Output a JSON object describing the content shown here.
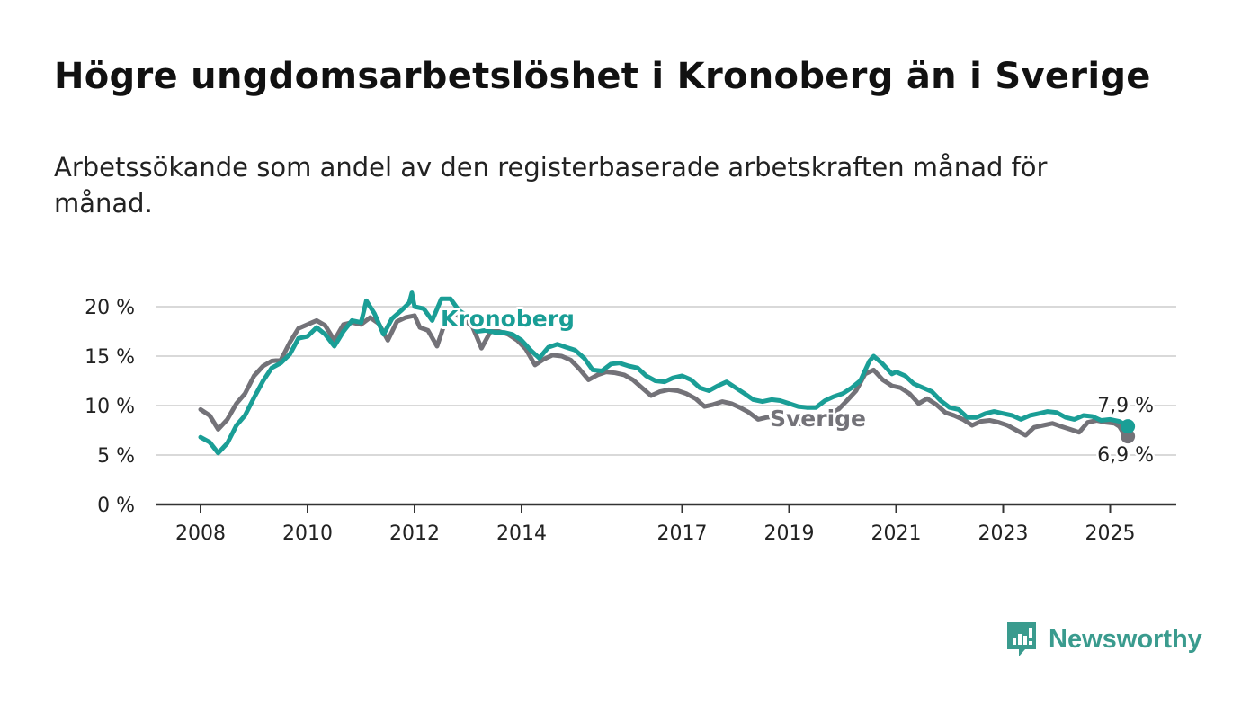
{
  "title": "Högre ungdomsarbetslöshet i Kronoberg än i Sverige",
  "subtitle": "Arbetssökande som andel av den registerbaserade arbetskraften månad för månad.",
  "brand": {
    "name": "Newsworthy",
    "icon": "newsworthy-logo-icon"
  },
  "colors": {
    "kronoberg": "#1a9e96",
    "sverige": "#737278",
    "grid": "#d9d9d9",
    "axis": "#333333",
    "brand": "#3a9b8e"
  },
  "chart_data": {
    "type": "line",
    "title": "Högre ungdomsarbetslöshet i Kronoberg än i Sverige",
    "subtitle": "Arbetssökande som andel av den registerbaserade arbetskraften månad för månad.",
    "xlabel": "",
    "ylabel": "",
    "x_ticks": [
      2008,
      2010,
      2012,
      2014,
      2017,
      2019,
      2021,
      2023,
      2025
    ],
    "x_tick_labels": [
      "2008",
      "2010",
      "2012",
      "2014",
      "2017",
      "2019",
      "2021",
      "2023",
      "2025"
    ],
    "y_ticks": [
      0,
      5,
      10,
      15,
      20
    ],
    "y_tick_labels": [
      "0 %",
      "5 %",
      "10 %",
      "15 %",
      "20 %"
    ],
    "ylim": [
      0,
      20
    ],
    "xlim": [
      2007.2,
      2026.2
    ],
    "grid": true,
    "legend": "inline labels",
    "series": [
      {
        "name": "Kronoberg",
        "color": "#1a9e96",
        "end_label": "7,9 %",
        "points": [
          [
            2008.0,
            6.8
          ],
          [
            2008.17,
            6.3
          ],
          [
            2008.33,
            5.2
          ],
          [
            2008.5,
            6.2
          ],
          [
            2008.67,
            8.0
          ],
          [
            2008.83,
            9.0
          ],
          [
            2009.0,
            10.8
          ],
          [
            2009.17,
            12.5
          ],
          [
            2009.33,
            13.8
          ],
          [
            2009.5,
            14.3
          ],
          [
            2009.67,
            15.2
          ],
          [
            2009.83,
            16.8
          ],
          [
            2010.0,
            17.0
          ],
          [
            2010.17,
            17.9
          ],
          [
            2010.33,
            17.2
          ],
          [
            2010.5,
            16.0
          ],
          [
            2010.67,
            17.5
          ],
          [
            2010.83,
            18.6
          ],
          [
            2011.0,
            18.4
          ],
          [
            2011.1,
            20.6
          ],
          [
            2011.25,
            19.3
          ],
          [
            2011.42,
            17.2
          ],
          [
            2011.58,
            18.8
          ],
          [
            2011.75,
            19.6
          ],
          [
            2011.9,
            20.4
          ],
          [
            2011.95,
            21.4
          ],
          [
            2012.0,
            20.0
          ],
          [
            2012.17,
            19.8
          ],
          [
            2012.33,
            18.6
          ],
          [
            2012.5,
            20.8
          ],
          [
            2012.67,
            20.8
          ],
          [
            2012.83,
            19.6
          ],
          [
            2013.0,
            19.0
          ],
          [
            2013.17,
            17.5
          ],
          [
            2013.33,
            17.6
          ],
          [
            2013.5,
            17.4
          ],
          [
            2013.67,
            17.4
          ],
          [
            2013.83,
            17.2
          ],
          [
            2014.0,
            16.6
          ],
          [
            2014.17,
            15.6
          ],
          [
            2014.33,
            14.8
          ],
          [
            2014.5,
            15.9
          ],
          [
            2014.67,
            16.2
          ],
          [
            2014.83,
            15.9
          ],
          [
            2015.0,
            15.6
          ],
          [
            2015.17,
            14.8
          ],
          [
            2015.33,
            13.6
          ],
          [
            2015.5,
            13.5
          ],
          [
            2015.67,
            14.2
          ],
          [
            2015.83,
            14.3
          ],
          [
            2016.0,
            14.0
          ],
          [
            2016.17,
            13.8
          ],
          [
            2016.33,
            13.0
          ],
          [
            2016.5,
            12.5
          ],
          [
            2016.67,
            12.4
          ],
          [
            2016.83,
            12.8
          ],
          [
            2017.0,
            13.0
          ],
          [
            2017.17,
            12.6
          ],
          [
            2017.33,
            11.8
          ],
          [
            2017.5,
            11.5
          ],
          [
            2017.67,
            12.0
          ],
          [
            2017.83,
            12.4
          ],
          [
            2018.0,
            11.8
          ],
          [
            2018.17,
            11.2
          ],
          [
            2018.33,
            10.6
          ],
          [
            2018.5,
            10.4
          ],
          [
            2018.67,
            10.6
          ],
          [
            2018.83,
            10.5
          ],
          [
            2019.0,
            10.2
          ],
          [
            2019.17,
            9.9
          ],
          [
            2019.33,
            9.8
          ],
          [
            2019.5,
            9.8
          ],
          [
            2019.67,
            10.5
          ],
          [
            2019.83,
            10.9
          ],
          [
            2020.0,
            11.2
          ],
          [
            2020.17,
            11.8
          ],
          [
            2020.33,
            12.5
          ],
          [
            2020.5,
            14.5
          ],
          [
            2020.58,
            15.0
          ],
          [
            2020.75,
            14.2
          ],
          [
            2020.92,
            13.2
          ],
          [
            2021.0,
            13.4
          ],
          [
            2021.17,
            13.0
          ],
          [
            2021.33,
            12.2
          ],
          [
            2021.5,
            11.8
          ],
          [
            2021.67,
            11.4
          ],
          [
            2021.83,
            10.5
          ],
          [
            2022.0,
            9.8
          ],
          [
            2022.17,
            9.6
          ],
          [
            2022.33,
            8.8
          ],
          [
            2022.5,
            8.8
          ],
          [
            2022.67,
            9.2
          ],
          [
            2022.83,
            9.4
          ],
          [
            2023.0,
            9.2
          ],
          [
            2023.17,
            9.0
          ],
          [
            2023.33,
            8.6
          ],
          [
            2023.5,
            9.0
          ],
          [
            2023.67,
            9.2
          ],
          [
            2023.83,
            9.4
          ],
          [
            2024.0,
            9.3
          ],
          [
            2024.17,
            8.8
          ],
          [
            2024.33,
            8.6
          ],
          [
            2024.5,
            9.0
          ],
          [
            2024.67,
            8.9
          ],
          [
            2024.83,
            8.5
          ],
          [
            2025.0,
            8.6
          ],
          [
            2025.17,
            8.4
          ],
          [
            2025.33,
            7.9
          ]
        ]
      },
      {
        "name": "Sverige",
        "color": "#737278",
        "end_label": "6,9 %",
        "points": [
          [
            2008.0,
            9.6
          ],
          [
            2008.17,
            9.0
          ],
          [
            2008.33,
            7.6
          ],
          [
            2008.5,
            8.6
          ],
          [
            2008.67,
            10.2
          ],
          [
            2008.83,
            11.2
          ],
          [
            2009.0,
            13.0
          ],
          [
            2009.17,
            14.0
          ],
          [
            2009.33,
            14.5
          ],
          [
            2009.5,
            14.6
          ],
          [
            2009.67,
            16.4
          ],
          [
            2009.83,
            17.8
          ],
          [
            2010.0,
            18.2
          ],
          [
            2010.17,
            18.6
          ],
          [
            2010.33,
            18.1
          ],
          [
            2010.5,
            16.6
          ],
          [
            2010.67,
            18.2
          ],
          [
            2010.83,
            18.4
          ],
          [
            2011.0,
            18.2
          ],
          [
            2011.17,
            18.9
          ],
          [
            2011.33,
            18.3
          ],
          [
            2011.5,
            16.6
          ],
          [
            2011.67,
            18.5
          ],
          [
            2011.83,
            18.9
          ],
          [
            2012.0,
            19.1
          ],
          [
            2012.1,
            17.9
          ],
          [
            2012.25,
            17.6
          ],
          [
            2012.42,
            16.0
          ],
          [
            2012.58,
            18.6
          ],
          [
            2012.75,
            19.3
          ],
          [
            2012.92,
            18.7
          ],
          [
            2013.08,
            18.0
          ],
          [
            2013.25,
            15.8
          ],
          [
            2013.42,
            17.5
          ],
          [
            2013.58,
            17.5
          ],
          [
            2013.75,
            17.2
          ],
          [
            2013.92,
            16.6
          ],
          [
            2014.08,
            15.7
          ],
          [
            2014.25,
            14.1
          ],
          [
            2014.42,
            14.7
          ],
          [
            2014.58,
            15.1
          ],
          [
            2014.75,
            15.0
          ],
          [
            2014.92,
            14.6
          ],
          [
            2015.08,
            13.7
          ],
          [
            2015.25,
            12.6
          ],
          [
            2015.42,
            13.1
          ],
          [
            2015.58,
            13.4
          ],
          [
            2015.75,
            13.3
          ],
          [
            2015.92,
            13.1
          ],
          [
            2016.08,
            12.6
          ],
          [
            2016.25,
            11.8
          ],
          [
            2016.42,
            11.0
          ],
          [
            2016.58,
            11.4
          ],
          [
            2016.75,
            11.6
          ],
          [
            2016.92,
            11.5
          ],
          [
            2017.08,
            11.2
          ],
          [
            2017.25,
            10.7
          ],
          [
            2017.42,
            9.9
          ],
          [
            2017.58,
            10.1
          ],
          [
            2017.75,
            10.4
          ],
          [
            2017.92,
            10.2
          ],
          [
            2018.08,
            9.8
          ],
          [
            2018.25,
            9.3
          ],
          [
            2018.42,
            8.6
          ],
          [
            2018.58,
            8.8
          ],
          [
            2018.75,
            8.9
          ],
          [
            2018.92,
            8.6
          ],
          [
            2019.08,
            8.3
          ],
          [
            2019.25,
            8.1
          ],
          [
            2019.42,
            8.6
          ],
          [
            2019.58,
            8.9
          ],
          [
            2019.75,
            9.0
          ],
          [
            2019.92,
            9.6
          ],
          [
            2020.08,
            10.5
          ],
          [
            2020.25,
            11.5
          ],
          [
            2020.42,
            13.2
          ],
          [
            2020.58,
            13.6
          ],
          [
            2020.75,
            12.6
          ],
          [
            2020.92,
            12.0
          ],
          [
            2021.08,
            11.8
          ],
          [
            2021.25,
            11.2
          ],
          [
            2021.42,
            10.2
          ],
          [
            2021.58,
            10.7
          ],
          [
            2021.75,
            10.1
          ],
          [
            2021.92,
            9.3
          ],
          [
            2022.08,
            9.0
          ],
          [
            2022.25,
            8.6
          ],
          [
            2022.42,
            8.0
          ],
          [
            2022.58,
            8.4
          ],
          [
            2022.75,
            8.5
          ],
          [
            2022.92,
            8.3
          ],
          [
            2023.08,
            8.0
          ],
          [
            2023.25,
            7.5
          ],
          [
            2023.42,
            7.0
          ],
          [
            2023.58,
            7.8
          ],
          [
            2023.75,
            8.0
          ],
          [
            2023.92,
            8.2
          ],
          [
            2024.08,
            7.9
          ],
          [
            2024.25,
            7.6
          ],
          [
            2024.42,
            7.3
          ],
          [
            2024.58,
            8.3
          ],
          [
            2024.75,
            8.5
          ],
          [
            2024.92,
            8.3
          ],
          [
            2025.08,
            8.2
          ],
          [
            2025.17,
            7.9
          ],
          [
            2025.25,
            7.2
          ],
          [
            2025.33,
            6.9
          ]
        ]
      }
    ]
  }
}
